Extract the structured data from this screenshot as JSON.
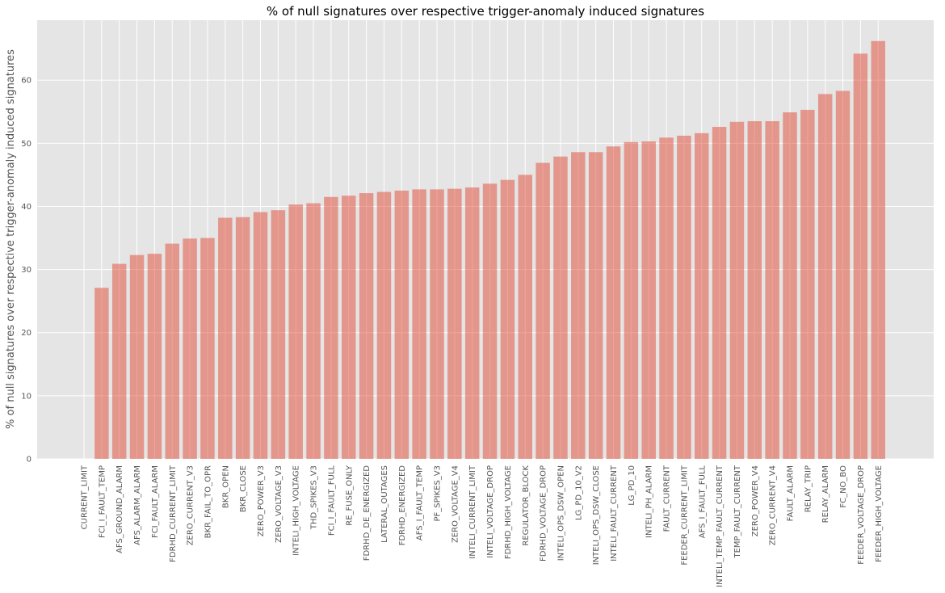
{
  "chart_data": {
    "type": "bar",
    "title": "% of null signatures over respective trigger-anomaly induced signatures",
    "xlabel": "",
    "ylabel": "% of null signatures over respective trigger-anomaly induced signatures",
    "ylim": [
      0,
      69.5
    ],
    "yticks": [
      0,
      10,
      20,
      30,
      40,
      50,
      60
    ],
    "grid": true,
    "colors": {
      "bar": "#E24A33",
      "bar_opacity": 0.5,
      "plot_background": "#E5E5E5",
      "grid": "#FFFFFF"
    },
    "categories": [
      "CURRENT_LIMIT",
      "FCI_I_FAULT_TEMP",
      "AFS_GROUND_ALARM",
      "AFS_ALARM_ALARM",
      "FCI_FAULT_ALARM",
      "FDRHD_CURRENT_LIMIT",
      "ZERO_CURRENT_V3",
      "BKR_FAIL_TO_OPR",
      "BKR_OPEN",
      "BKR_CLOSE",
      "ZERO_POWER_V3",
      "ZERO_VOLTAGE_V3",
      "INTELI_HIGH_VOLTAGE",
      "THD_SPIKES_V3",
      "FCI_I_FAULT_FULL",
      "RE_FUSE_ONLY",
      "FDRHD_DE_ENERGIZED",
      "LATERAL_OUTAGES",
      "FDRHD_ENERGIZED",
      "AFS_I_FAULT_TEMP",
      "PF_SPIKES_V3",
      "ZERO_VOLTAGE_V4",
      "INTELI_CURRENT_LIMIT",
      "INTELI_VOLTAGE_DROP",
      "FDRHD_HIGH_VOLTAGE",
      "REGULATOR_BLOCK",
      "FDRHD_VOLTAGE_DROP",
      "INTELI_OPS_DSW_OPEN",
      "LG_PD_10_V2",
      "INTELI_OPS_DSW_CLOSE",
      "INTELI_FAULT_CURRENT",
      "LG_PD_10",
      "INTELI_PH_ALARM",
      "FAULT_CURRENT",
      "FEEDER_CURRENT_LIMIT",
      "AFS_I_FAULT_FULL",
      "INTELI_TEMP_FAULT_CURRENT",
      "TEMP_FAULT_CURRENT",
      "ZERO_POWER_V4",
      "ZERO_CURRENT_V4",
      "FAULT_ALARM",
      "RELAY_TRIP",
      "RELAY_ALARM",
      "FC_NO_BO",
      "FEEDER_VOLTAGE_DROP",
      "FEEDER_HIGH_VOLTAGE"
    ],
    "values": [
      0,
      27.1,
      30.9,
      32.3,
      32.5,
      34.1,
      34.9,
      35.0,
      38.2,
      38.3,
      39.1,
      39.4,
      40.3,
      40.5,
      41.5,
      41.7,
      42.1,
      42.3,
      42.5,
      42.7,
      42.7,
      42.8,
      43.0,
      43.6,
      44.2,
      45.0,
      46.9,
      47.9,
      48.6,
      48.6,
      49.5,
      50.2,
      50.3,
      50.9,
      51.2,
      51.6,
      52.6,
      53.4,
      53.5,
      53.5,
      54.9,
      55.3,
      57.8,
      58.3,
      64.2,
      66.2
    ]
  }
}
